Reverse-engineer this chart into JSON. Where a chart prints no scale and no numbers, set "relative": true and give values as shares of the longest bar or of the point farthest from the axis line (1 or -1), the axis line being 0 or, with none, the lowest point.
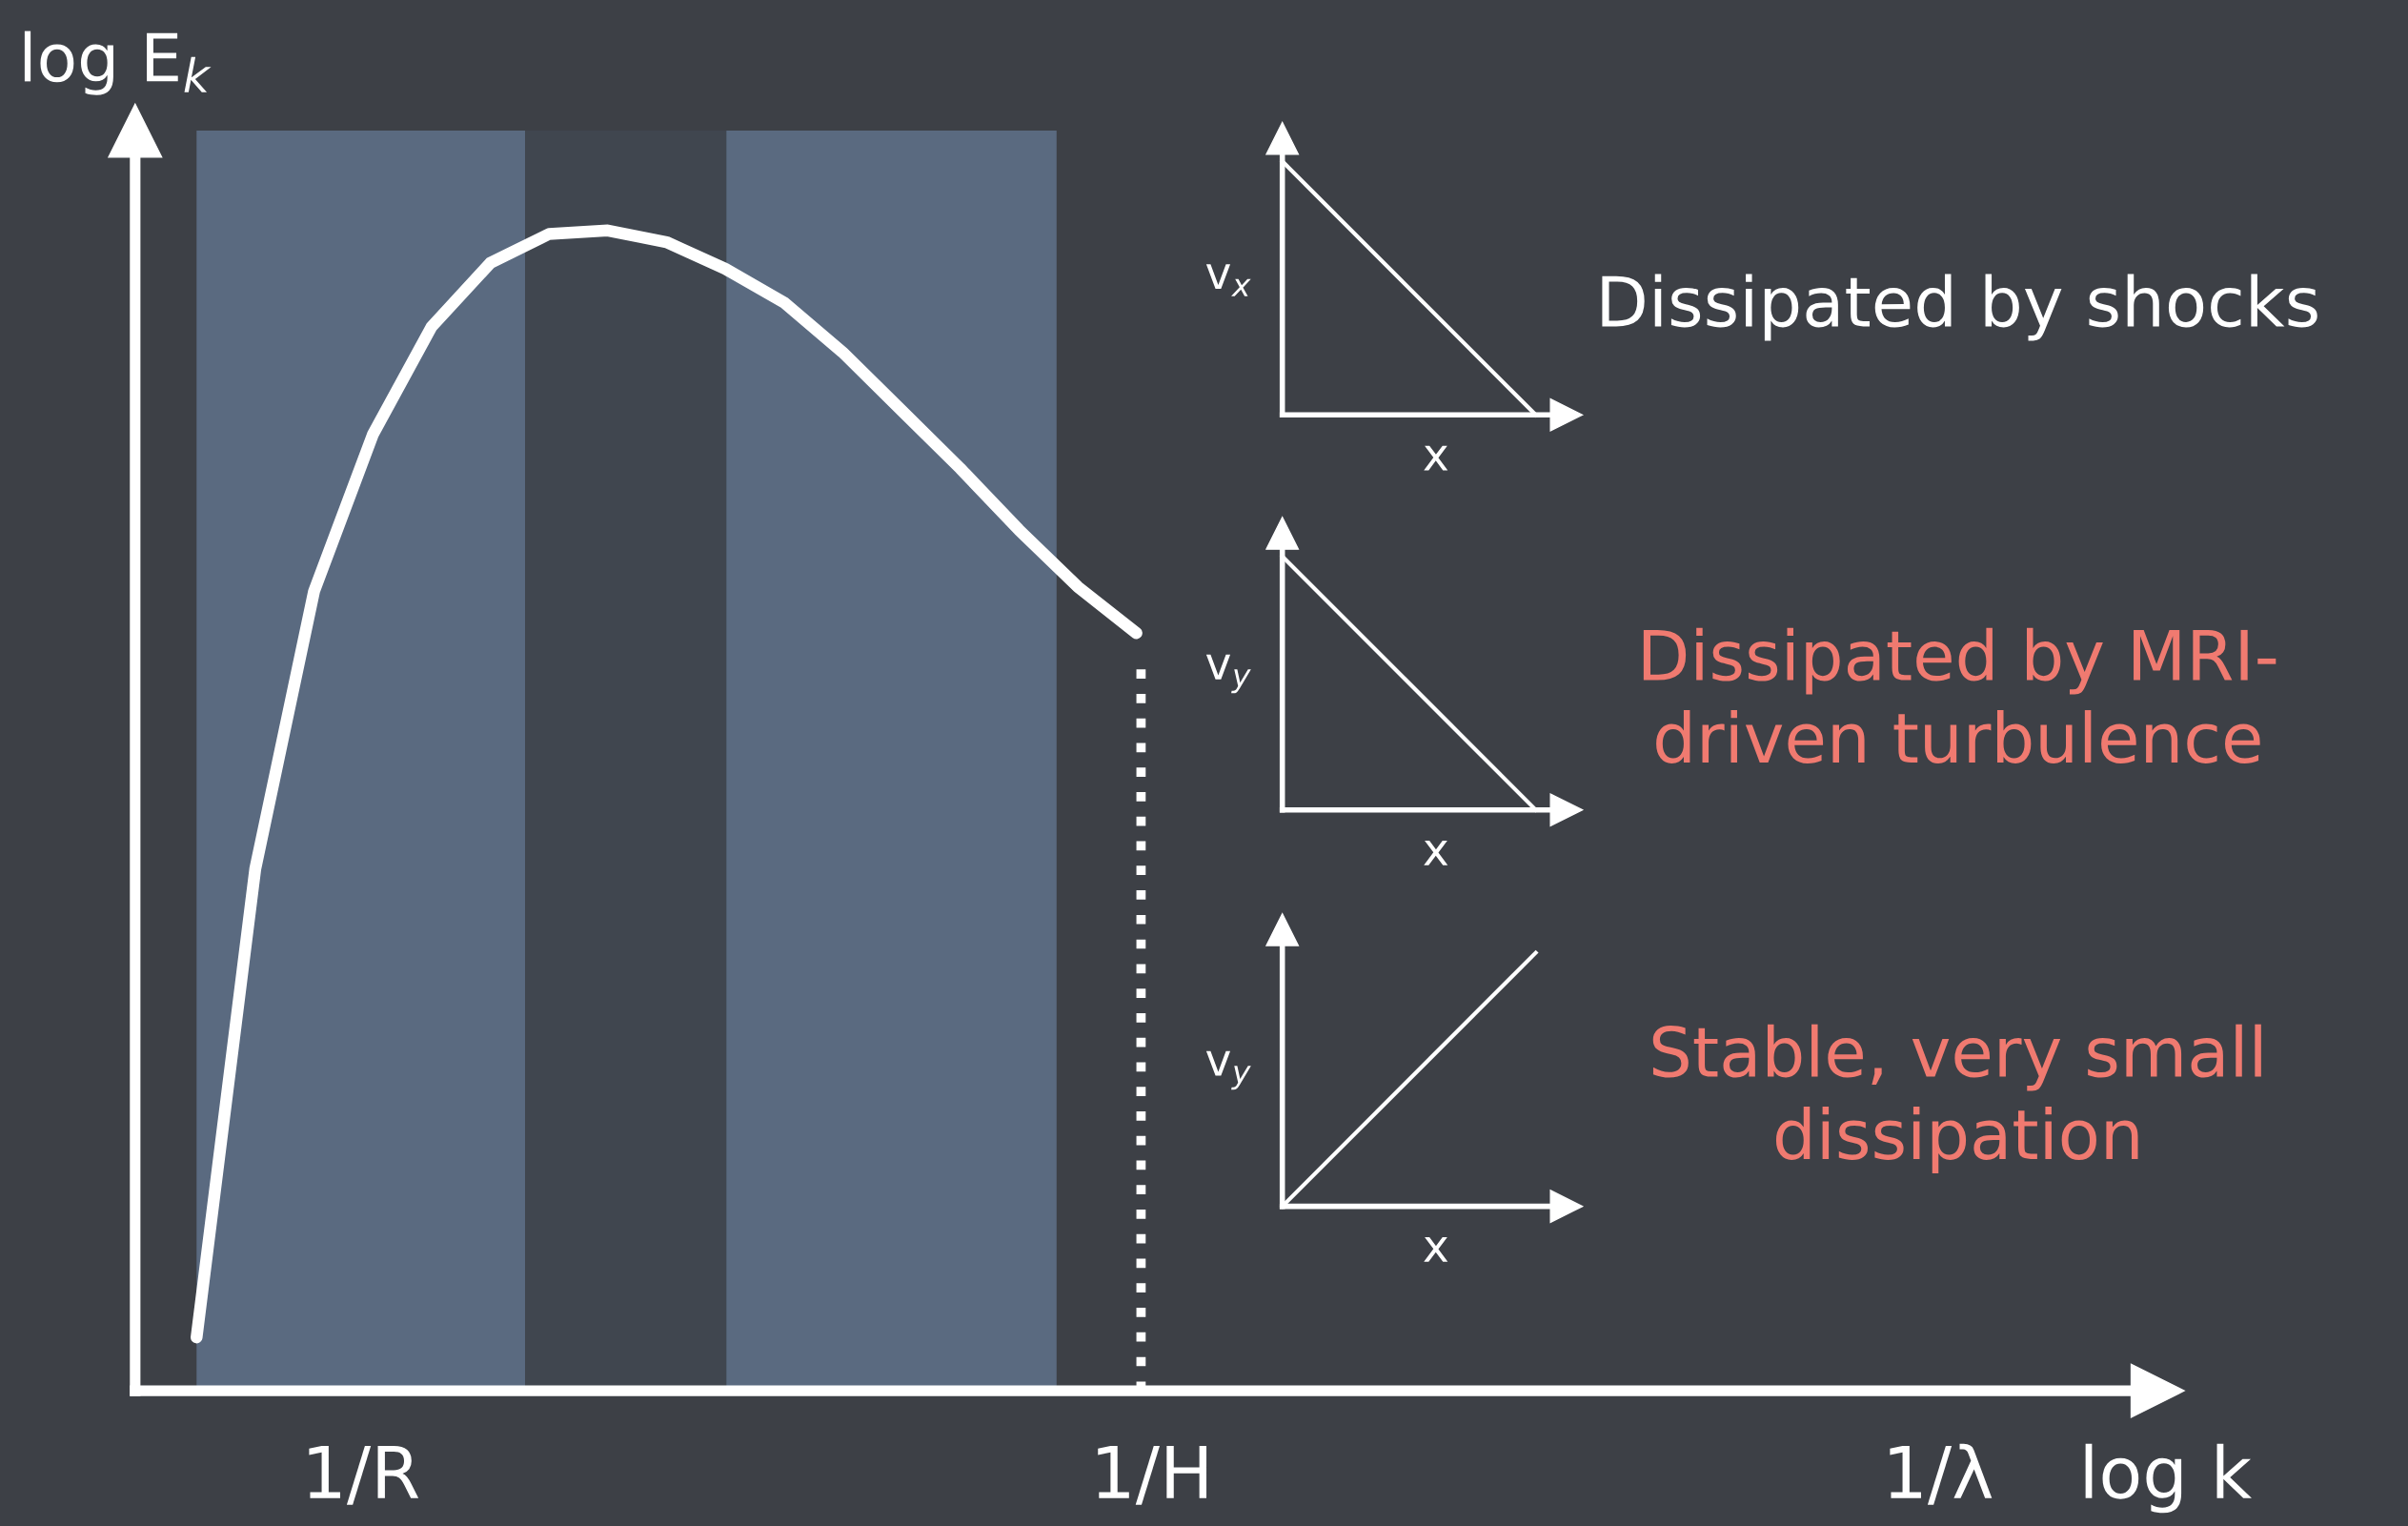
{
  "chart_data": {
    "type": "line",
    "relative": true,
    "ylabel": "log E$_{k}$",
    "categories": [
      null,
      null,
      null,
      null,
      null,
      null,
      null,
      null,
      null,
      null,
      null,
      null,
      null,
      null,
      null,
      null,
      null
    ],
    "series": [
      {
        "color": "#ffffff",
        "values": [
          0.046,
          0.45,
          0.689,
          0.824,
          0.917,
          0.972,
          0.997,
          1.0,
          0.99,
          0.967,
          0.938,
          0.895,
          0.845,
          0.795,
          0.742,
          0.693,
          0.653
        ]
      }
    ],
    "annotations": [
      "1/R",
      "1/H",
      "1/λ",
      "v$_{x}$",
      "x",
      "Dissipated by shocks",
      "v$_{y}$",
      "x",
      "Dissipated by MRI-\ndriven turbulence",
      "v$_{y}$",
      "x",
      "Stable, very small\ndissipation",
      "log k"
    ]
  }
}
